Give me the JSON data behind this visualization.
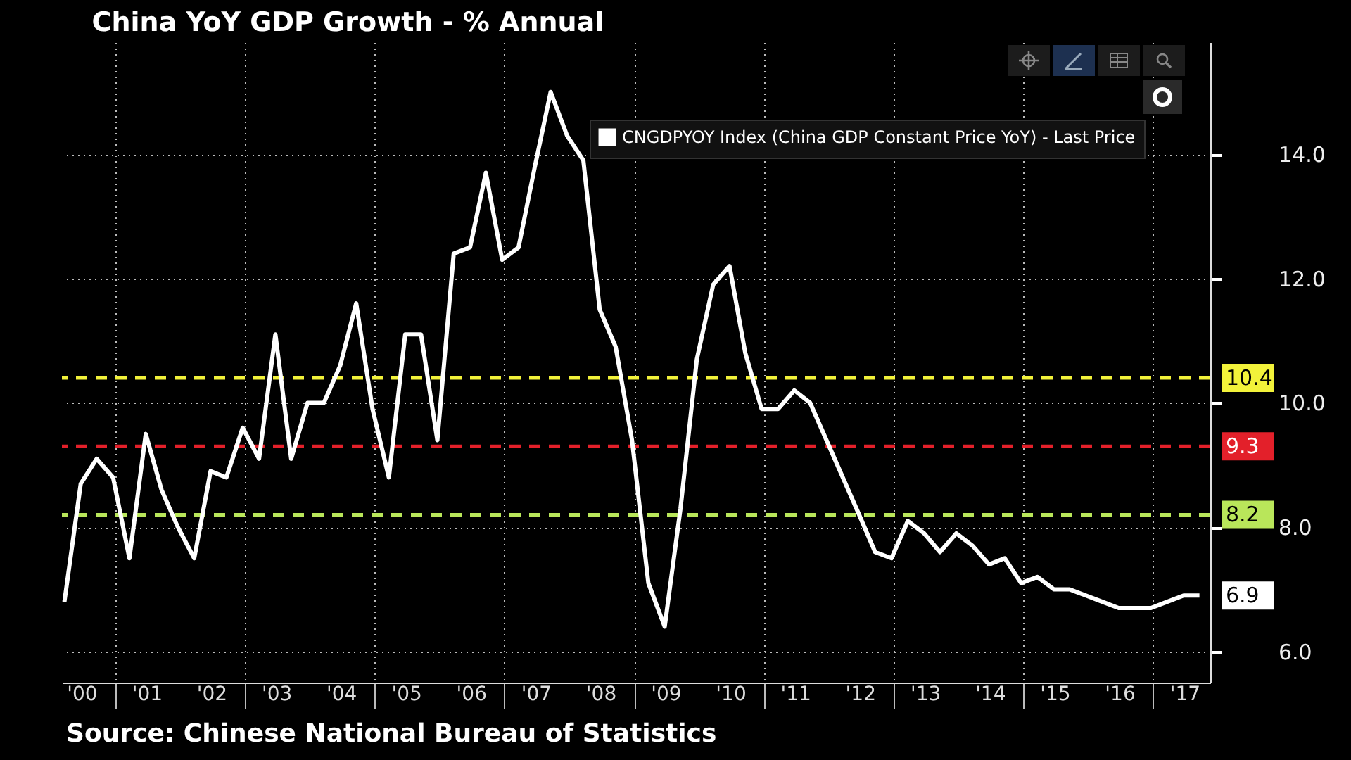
{
  "chart_data": {
    "type": "line",
    "title": "China YoY GDP Growth - % Annual",
    "annotations": [
      "Source: Chinese National Bureau of Statistics"
    ],
    "x": [
      "1999-11-15",
      "2000-02-15",
      "2000-05-15",
      "2000-08-15",
      "2000-11-15",
      "2001-02-15",
      "2001-05-15",
      "2001-08-15",
      "2001-11-15",
      "2002-02-15",
      "2002-05-15",
      "2002-08-15",
      "2002-11-15",
      "2003-02-15",
      "2003-05-15",
      "2003-08-15",
      "2003-11-15",
      "2004-02-15",
      "2004-05-15",
      "2004-08-15",
      "2004-11-15",
      "2005-02-15",
      "2005-05-15",
      "2005-08-15",
      "2005-11-15",
      "2006-02-15",
      "2006-05-15",
      "2006-08-15",
      "2006-11-15",
      "2007-02-15",
      "2007-05-15",
      "2007-08-15",
      "2007-11-15",
      "2008-02-15",
      "2008-05-15",
      "2008-08-15",
      "2008-11-15",
      "2009-02-15",
      "2009-05-15",
      "2009-08-15",
      "2009-11-15",
      "2010-02-15",
      "2010-05-15",
      "2010-08-15",
      "2010-11-15",
      "2011-02-15",
      "2011-05-15",
      "2011-08-15",
      "2011-11-15",
      "2012-02-15",
      "2012-05-15",
      "2012-08-15",
      "2012-11-15",
      "2013-02-15",
      "2013-05-15",
      "2013-08-15",
      "2013-11-15",
      "2014-02-15",
      "2014-05-15",
      "2014-08-15",
      "2014-11-15",
      "2015-02-15",
      "2015-05-15",
      "2015-08-15",
      "2015-11-15",
      "2016-02-15",
      "2016-05-15",
      "2016-08-15",
      "2016-11-15",
      "2017-02-15",
      "2017-05-15"
    ],
    "series": [
      {
        "name": "CNGDPYOY Index (China GDP Constant Price YoY) - Last Price",
        "color": "#ffffff",
        "values": [
          6.8,
          8.7,
          9.1,
          8.8,
          7.5,
          9.5,
          8.6,
          8.0,
          7.5,
          8.9,
          8.8,
          9.6,
          9.1,
          11.1,
          9.1,
          10.0,
          10.0,
          10.6,
          11.6,
          9.9,
          8.8,
          11.1,
          11.1,
          9.4,
          12.4,
          12.5,
          13.7,
          12.3,
          12.5,
          13.8,
          15.0,
          14.3,
          13.9,
          11.5,
          10.9,
          9.4,
          7.1,
          6.4,
          8.3,
          10.7,
          11.9,
          12.2,
          10.8,
          9.9,
          9.9,
          10.2,
          10.0,
          9.4,
          8.8,
          8.2,
          7.6,
          7.5,
          8.1,
          7.9,
          7.6,
          7.9,
          7.7,
          7.4,
          7.5,
          7.1,
          7.2,
          7.0,
          7.0,
          6.9,
          6.8,
          6.7,
          6.7,
          6.7,
          6.8,
          6.9,
          6.9
        ],
        "value_labels": [
          null,
          null,
          null,
          null,
          null,
          null,
          null,
          null,
          null,
          null,
          null,
          null,
          null,
          null,
          null,
          null,
          null,
          null,
          null,
          null,
          null,
          null,
          null,
          null,
          null,
          null,
          null,
          null,
          null,
          null,
          null,
          null,
          null,
          null,
          null,
          null,
          null,
          null,
          null,
          null,
          null,
          null,
          null,
          null,
          null,
          null,
          null,
          null,
          null,
          null,
          null,
          null,
          null,
          null,
          null,
          null,
          null,
          null,
          null,
          null,
          null,
          null,
          null,
          null,
          null,
          null,
          null,
          null,
          null,
          null,
          "6.9"
        ]
      }
    ],
    "xlim": [
      "1999-11-01",
      "2017-07-15"
    ],
    "xticks": [
      {
        "value": "2000-02-20",
        "label": "'00"
      },
      {
        "value": "2001-02-20",
        "label": "'01"
      },
      {
        "value": "2002-02-20",
        "label": "'02"
      },
      {
        "value": "2003-02-20",
        "label": "'03"
      },
      {
        "value": "2004-02-20",
        "label": "'04"
      },
      {
        "value": "2005-02-20",
        "label": "'05"
      },
      {
        "value": "2006-02-20",
        "label": "'06"
      },
      {
        "value": "2007-02-20",
        "label": "'07"
      },
      {
        "value": "2008-02-20",
        "label": "'08"
      },
      {
        "value": "2009-02-20",
        "label": "'09"
      },
      {
        "value": "2010-02-20",
        "label": "'10"
      },
      {
        "value": "2011-02-20",
        "label": "'11"
      },
      {
        "value": "2012-02-20",
        "label": "'12"
      },
      {
        "value": "2013-02-20",
        "label": "'13"
      },
      {
        "value": "2014-02-20",
        "label": "'14"
      },
      {
        "value": "2015-02-20",
        "label": "'15"
      },
      {
        "value": "2016-02-20",
        "label": "'16"
      },
      {
        "value": "2017-02-20",
        "label": "'17"
      },
      {
        "value": "2000-08-28",
        "label": null
      },
      {
        "value": "2002-08-28",
        "label": null
      },
      {
        "value": "2004-08-28",
        "label": null
      },
      {
        "value": "2006-08-28",
        "label": null
      },
      {
        "value": "2008-08-28",
        "label": null
      },
      {
        "value": "2010-08-28",
        "label": null
      },
      {
        "value": "2012-08-28",
        "label": null
      },
      {
        "value": "2014-08-28",
        "label": null
      },
      {
        "value": "2016-08-28",
        "label": null
      }
    ],
    "ylim": [
      5.5,
      15.8
    ],
    "yticks": [
      {
        "value": 6,
        "label": "6.0"
      },
      {
        "value": 8,
        "label": "8.0"
      },
      {
        "value": 10,
        "label": "10.0"
      },
      {
        "value": 12,
        "label": "12.0"
      },
      {
        "value": 14,
        "label": "14.0"
      }
    ],
    "ref_lines": [
      {
        "axis": "y",
        "value": 10.4,
        "label": "10.4",
        "color": "#f2f23a",
        "line_style": "dashed"
      },
      {
        "axis": "y",
        "value": 9.3,
        "label": "9.3",
        "color": "#e3202a",
        "line_style": "dashed"
      },
      {
        "axis": "y",
        "value": 8.2,
        "label": "8.2",
        "color": "#b9e65a",
        "line_style": "dashed"
      }
    ],
    "grid": true,
    "legend": "top right",
    "marker": "none",
    "line_style": "solid"
  }
}
